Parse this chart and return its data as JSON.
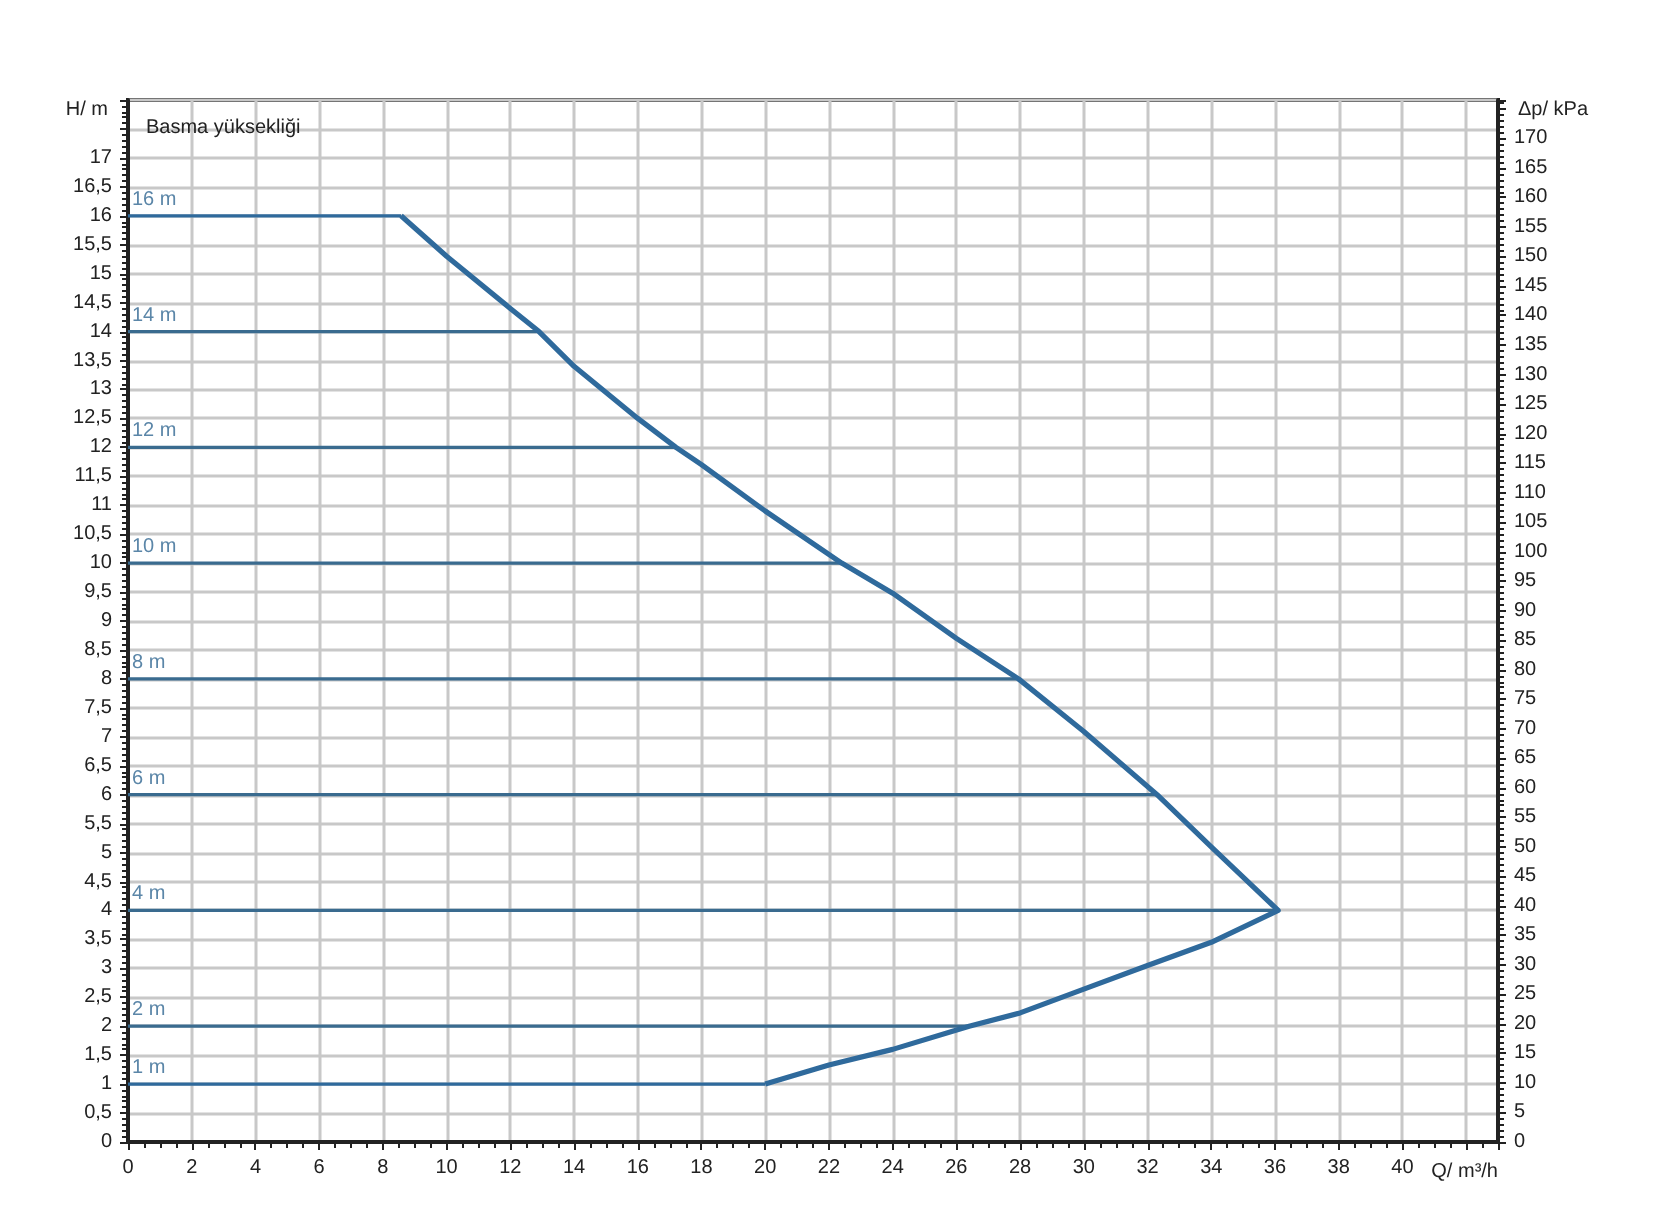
{
  "chart_data": {
    "type": "line",
    "title": "Basma yüksekliği",
    "xlabel": "Q/ m³/h",
    "ylabel": "H/ m",
    "y2label": "Δp/ kPa",
    "xlim": [
      0,
      43
    ],
    "xticks": [
      0,
      2,
      4,
      6,
      8,
      10,
      12,
      14,
      16,
      18,
      20,
      22,
      24,
      26,
      28,
      30,
      32,
      34,
      36,
      38,
      40
    ],
    "ylim": [
      0,
      18
    ],
    "yticks": [
      0,
      {
        "value": 0.5,
        "label": "0,5"
      },
      1,
      {
        "value": 1.5,
        "label": "1,5"
      },
      2,
      {
        "value": 2.5,
        "label": "2,5"
      },
      3,
      {
        "value": 3.5,
        "label": "3,5"
      },
      4,
      {
        "value": 4.5,
        "label": "4,5"
      },
      5,
      {
        "value": 5.5,
        "label": "5,5"
      },
      6,
      {
        "value": 6.5,
        "label": "6,5"
      },
      7,
      {
        "value": 7.5,
        "label": "7,5"
      },
      8,
      {
        "value": 8.5,
        "label": "8,5"
      },
      9,
      {
        "value": 9.5,
        "label": "9,5"
      },
      10,
      {
        "value": 10.5,
        "label": "10,5"
      },
      11,
      {
        "value": 11.5,
        "label": "11,5"
      },
      12,
      {
        "value": 12.5,
        "label": "12,5"
      },
      13,
      {
        "value": 13.5,
        "label": "13,5"
      },
      14,
      {
        "value": 14.5,
        "label": "14,5"
      },
      15,
      {
        "value": 15.5,
        "label": "15,5"
      },
      16,
      {
        "value": 16.5,
        "label": "16,5"
      },
      17,
      {
        "value": 17.5,
        "label": null
      },
      {
        "value": 18,
        "label": null
      }
    ],
    "y2lim": [
      0,
      176.5
    ],
    "y2ticks": [
      0,
      5,
      10,
      15,
      20,
      25,
      30,
      35,
      40,
      45,
      50,
      55,
      60,
      65,
      70,
      75,
      80,
      85,
      90,
      95,
      100,
      105,
      110,
      115,
      120,
      125,
      130,
      135,
      140,
      145,
      150,
      155,
      160,
      165,
      170
    ],
    "grid": true,
    "marker": "none",
    "series": [
      {
        "color": "#2f6a9c",
        "x": [
          8.57,
          10,
          12,
          12.9,
          14,
          16,
          17.2,
          18,
          20,
          22.4,
          24,
          26,
          27.95,
          30,
          32.3,
          34,
          36.1,
          34,
          32,
          30,
          28,
          26.4,
          24,
          22,
          20
        ],
        "values": [
          16,
          15.3,
          14.4,
          14,
          13.4,
          12.5,
          12,
          11.7,
          10.9,
          10,
          9.48,
          8.7,
          8,
          7.09,
          6,
          5.1,
          4,
          3.45,
          3.05,
          2.64,
          2.23,
          2,
          1.6,
          1.33,
          1
        ]
      },
      {
        "name": "16 m",
        "color": "#2f6a9c",
        "x": [
          0,
          8.57
        ],
        "values": [
          16,
          16
        ]
      },
      {
        "name": "14 m",
        "color": "#3a6b8f",
        "x": [
          0,
          12.9
        ],
        "values": [
          14,
          14
        ]
      },
      {
        "name": "12 m",
        "color": "#3a6b8f",
        "x": [
          0,
          17.2
        ],
        "values": [
          12,
          12
        ]
      },
      {
        "name": "10 m",
        "color": "#3a6b8f",
        "x": [
          0,
          22.4
        ],
        "values": [
          10,
          10
        ]
      },
      {
        "name": "8 m",
        "color": "#3a6b8f",
        "x": [
          0,
          27.95
        ],
        "values": [
          8,
          8
        ]
      },
      {
        "name": "6 m",
        "color": "#3a6b8f",
        "x": [
          0,
          32.3
        ],
        "values": [
          6,
          6
        ]
      },
      {
        "name": "4 m",
        "color": "#3a6b8f",
        "x": [
          0,
          36.1
        ],
        "values": [
          4,
          4
        ]
      },
      {
        "name": "2 m",
        "color": "#3a6b8f",
        "x": [
          0,
          26.4
        ],
        "values": [
          2,
          2
        ]
      },
      {
        "name": "1 m",
        "color": "#2f6a9c",
        "x": [
          0,
          20
        ],
        "values": [
          1,
          1
        ]
      }
    ]
  }
}
